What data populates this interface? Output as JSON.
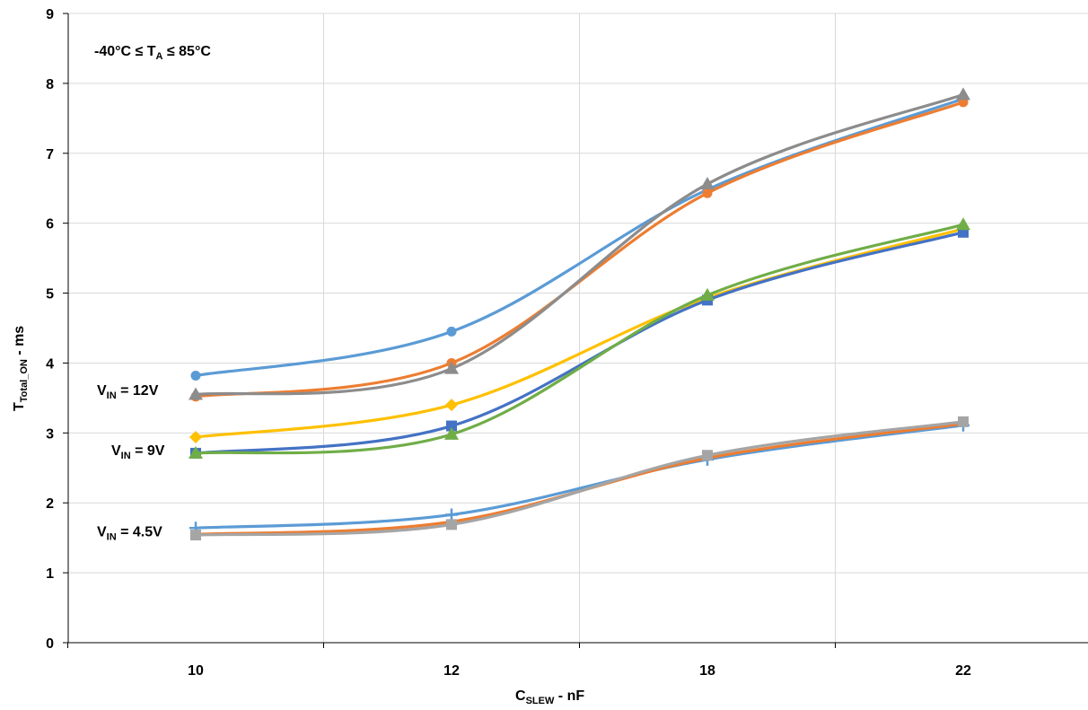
{
  "chart_data": {
    "type": "line",
    "x": [
      10,
      12,
      18,
      22
    ],
    "xlabel": {
      "main": "C",
      "sub": "SLEW",
      "rest": " - nF"
    },
    "ylabel": {
      "main": "T",
      "sub": "Total_ON",
      "rest": " - ms"
    },
    "ylim": [
      0,
      9
    ],
    "yticks": [
      0,
      1,
      2,
      3,
      4,
      5,
      6,
      7,
      8,
      9
    ],
    "grid": true,
    "annotations": {
      "temp": {
        "a": "-40°C ≤ T",
        "sub": "A",
        "b": " ≤ 85°C"
      },
      "v12": {
        "main": "V",
        "sub": "IN",
        "rest": " = 12V",
        "y": 3.53
      },
      "v9": {
        "main": "V",
        "sub": "IN",
        "rest": " = 9V",
        "y": 2.71
      },
      "v45": {
        "main": "V",
        "sub": "IN",
        "rest": " = 4.5V",
        "y": 1.56
      }
    },
    "series": [
      {
        "group": "12V",
        "color": "#5B9BD5",
        "marker": "circle",
        "values": [
          3.82,
          4.45,
          6.48,
          7.78
        ]
      },
      {
        "group": "12V",
        "color": "#ED7D31",
        "marker": "circle",
        "values": [
          3.52,
          4.0,
          6.43,
          7.73
        ]
      },
      {
        "group": "12V",
        "color": "#8C8C8C",
        "marker": "triangle",
        "values": [
          3.55,
          3.92,
          6.56,
          7.84
        ]
      },
      {
        "group": "9V",
        "color": "#FFC000",
        "marker": "diamond",
        "values": [
          2.94,
          3.4,
          4.93,
          5.92
        ]
      },
      {
        "group": "9V",
        "color": "#4472C4",
        "marker": "square",
        "values": [
          2.71,
          3.1,
          4.9,
          5.87
        ]
      },
      {
        "group": "9V",
        "color": "#70AD47",
        "marker": "triangle",
        "values": [
          2.71,
          2.98,
          4.97,
          5.98
        ]
      },
      {
        "group": "4.5V",
        "color": "#5B9BD5",
        "marker": "plus",
        "values": [
          1.64,
          1.83,
          2.62,
          3.11
        ]
      },
      {
        "group": "4.5V",
        "color": "#ED7D31",
        "marker": "none",
        "values": [
          1.55,
          1.73,
          2.64,
          3.13
        ]
      },
      {
        "group": "4.5V",
        "color": "#A5A5A5",
        "marker": "square",
        "values": [
          1.54,
          1.69,
          2.68,
          3.16
        ]
      }
    ]
  }
}
